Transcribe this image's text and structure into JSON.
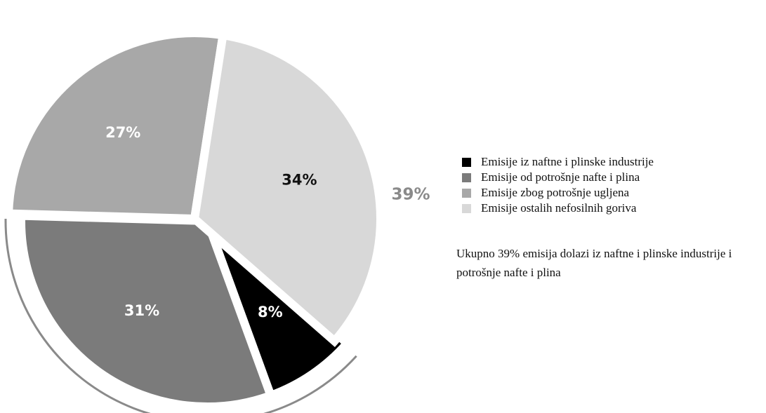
{
  "chart_data": {
    "type": "pie",
    "title": "",
    "slices": [
      {
        "label": "Emisije iz naftne i plinske industrije",
        "value": 8,
        "display": "8%",
        "color": "#000000",
        "label_color": "#ffffff",
        "exploded": false
      },
      {
        "label": "Emisije od potrošnje nafte i plina",
        "value": 31,
        "display": "31%",
        "color": "#7b7b7b",
        "label_color": "#ffffff",
        "exploded": false
      },
      {
        "label": "Emisije zbog potrošnje ugljena",
        "value": 27,
        "display": "27%",
        "color": "#a8a8a8",
        "label_color": "#ffffff",
        "exploded": true
      },
      {
        "label": "Emisije ostalih nefosilnih goriva",
        "value": 34,
        "display": "34%",
        "color": "#d8d8d8",
        "label_color": "#111111",
        "exploded": true
      }
    ],
    "group_bracket": {
      "label": "39%",
      "covers": [
        "Emisije iz naftne i plinske industrije",
        "Emisije od potrošnje nafte i plina"
      ],
      "color": "#8a8a8a"
    },
    "legend": {
      "placement": "right",
      "entries": [
        {
          "label": "Emisije iz naftne i plinske industrije",
          "color": "#000000"
        },
        {
          "label": "Emisije od potrošnje nafte i plina",
          "color": "#7b7b7b"
        },
        {
          "label": "Emisije zbog potrošnje ugljena",
          "color": "#a8a8a8"
        },
        {
          "label": "Emisije ostalih nefosilnih goriva",
          "color": "#d8d8d8"
        }
      ]
    },
    "annotation": "Ukupno 39% emisija dolazi iz naftne i plinske industrije i potrošnje nafte i plina"
  }
}
